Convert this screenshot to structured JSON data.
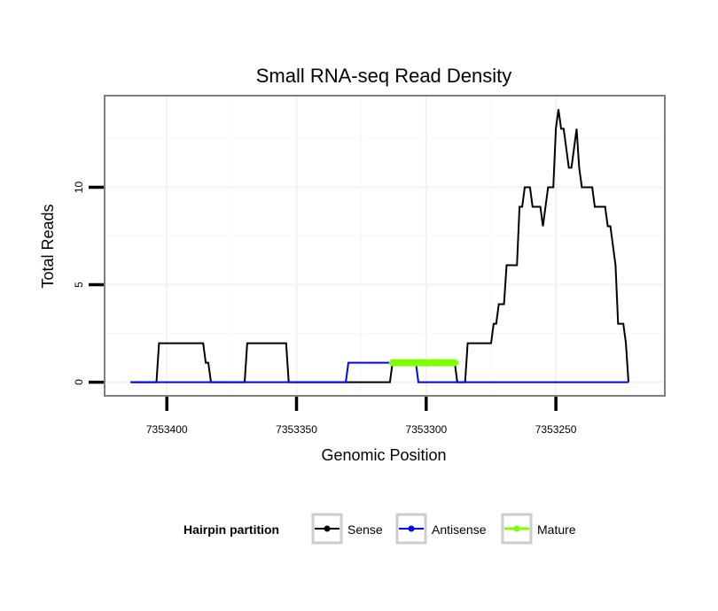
{
  "chart_data": {
    "type": "line",
    "title": "Small RNA-seq Read Density",
    "xlabel": "Genomic Position",
    "ylabel": "Total Reads",
    "x_reversed": true,
    "xlim": [
      7353424,
      7353208
    ],
    "ylim": [
      -0.7,
      14.7
    ],
    "x_ticks": [
      7353400,
      7353350,
      7353300,
      7353250
    ],
    "x_tick_labels": [
      "7353400",
      "7353350",
      "7353300",
      "7353250"
    ],
    "y_ticks": [
      0,
      5,
      10
    ],
    "y_tick_labels": [
      "0",
      "5",
      "10"
    ],
    "grid": true,
    "legend": {
      "title": "Hairpin partition",
      "position": "bottom",
      "entries": [
        {
          "label": "Sense",
          "color": "#000000"
        },
        {
          "label": "Antisense",
          "color": "#0000ff"
        },
        {
          "label": "Mature",
          "color": "#7fff00"
        }
      ]
    },
    "series": [
      {
        "name": "Sense",
        "color": "#000000",
        "points": [
          [
            7353414,
            0
          ],
          [
            7353404,
            0
          ],
          [
            7353403,
            2
          ],
          [
            7353386,
            2
          ],
          [
            7353385,
            1
          ],
          [
            7353384,
            1
          ],
          [
            7353383,
            0
          ],
          [
            7353370,
            0
          ],
          [
            7353369,
            2
          ],
          [
            7353354,
            2
          ],
          [
            7353353,
            0
          ],
          [
            7353314,
            0
          ],
          [
            7353313,
            1
          ],
          [
            7353289,
            1
          ],
          [
            7353288,
            0
          ],
          [
            7353285,
            0
          ],
          [
            7353284,
            2
          ],
          [
            7353275,
            2
          ],
          [
            7353274,
            3
          ],
          [
            7353273,
            3
          ],
          [
            7353272,
            4
          ],
          [
            7353270,
            4
          ],
          [
            7353269,
            6
          ],
          [
            7353265,
            6
          ],
          [
            7353264,
            9
          ],
          [
            7353263,
            9
          ],
          [
            7353262,
            10
          ],
          [
            7353260,
            10
          ],
          [
            7353259,
            9
          ],
          [
            7353256,
            9
          ],
          [
            7353255,
            8
          ],
          [
            7353254,
            9
          ],
          [
            7353253,
            10
          ],
          [
            7353251,
            10
          ],
          [
            7353250,
            13
          ],
          [
            7353249,
            14
          ],
          [
            7353248,
            13
          ],
          [
            7353247,
            13
          ],
          [
            7353246,
            12
          ],
          [
            7353245,
            11
          ],
          [
            7353244,
            11
          ],
          [
            7353243,
            12
          ],
          [
            7353242,
            13
          ],
          [
            7353241,
            11
          ],
          [
            7353240,
            10
          ],
          [
            7353236,
            10
          ],
          [
            7353235,
            9
          ],
          [
            7353231,
            9
          ],
          [
            7353230,
            8
          ],
          [
            7353229,
            8
          ],
          [
            7353228,
            7
          ],
          [
            7353227,
            6
          ],
          [
            7353226,
            3
          ],
          [
            7353224,
            3
          ],
          [
            7353223,
            2
          ],
          [
            7353222,
            0
          ]
        ]
      },
      {
        "name": "Antisense",
        "color": "#0000ff",
        "points": [
          [
            7353414,
            0
          ],
          [
            7353331,
            0
          ],
          [
            7353330,
            1
          ],
          [
            7353304,
            1
          ],
          [
            7353303,
            0
          ],
          [
            7353222,
            0
          ]
        ]
      },
      {
        "name": "Mature",
        "color": "#7fff00",
        "points": [
          [
            7353313,
            1
          ],
          [
            7353289,
            1
          ]
        ]
      }
    ]
  }
}
